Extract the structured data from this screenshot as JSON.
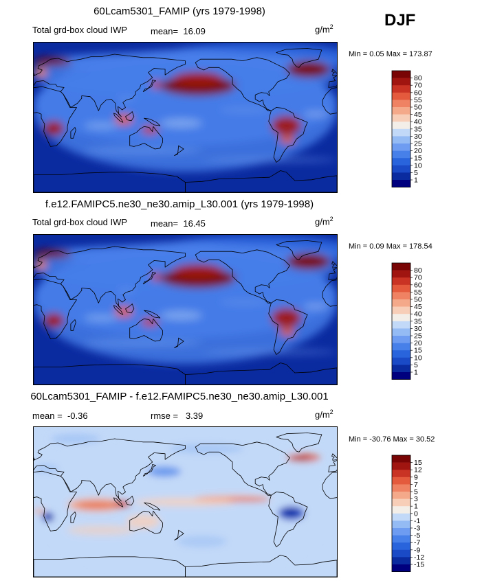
{
  "season": "DJF",
  "panels": [
    {
      "title": "60Lcam5301_FAMIP (yrs 1979-1998)",
      "variable": "Total grd-box cloud IWP",
      "mean_label": "mean=",
      "mean_value": "16.09",
      "units_base": "g/m",
      "units_exp": "2",
      "minmax": "Min =    0.05 Max = 173.87",
      "palette": "abs"
    },
    {
      "title": "f.e12.FAMIPC5.ne30_ne30.amip_L30.001 (yrs 1979-1998)",
      "variable": "Total grd-box cloud IWP",
      "mean_label": "mean=",
      "mean_value": "16.45",
      "units_base": "g/m",
      "units_exp": "2",
      "minmax": "Min =    0.09 Max = 178.54",
      "palette": "abs"
    },
    {
      "title": "60Lcam5301_FAMIP - f.e12.FAMIPC5.ne30_ne30.amip_L30.001",
      "mean_label": "mean =",
      "mean_value": "-0.36",
      "rmse_label": "rmse =",
      "rmse_value": "3.39",
      "units_base": "g/m",
      "units_exp": "2",
      "minmax": "Min = -30.76 Max =  30.52",
      "palette": "diff"
    }
  ],
  "chart_data": [
    {
      "type": "heatmap",
      "title": "60Lcam5301_FAMIP (yrs 1979-1998)",
      "variable": "Total grd-box cloud IWP",
      "units": "g/m2",
      "mean": 16.09,
      "min": 0.05,
      "max": 173.87,
      "colorbar_levels": [
        "1",
        "5",
        "10",
        "15",
        "20",
        "25",
        "30",
        "35",
        "40",
        "45",
        "50",
        "55",
        "60",
        "70",
        "80"
      ],
      "colorbar_colors": [
        "#00007f",
        "#0a2aa0",
        "#1a4ac6",
        "#2a64dc",
        "#4880ea",
        "#6d9cf0",
        "#95bbf4",
        "#c3d9f8",
        "#f4eee8",
        "#f7cfb9",
        "#f4a98a",
        "#ee8262",
        "#e35a3c",
        "#c93323",
        "#a01510",
        "#7a0505"
      ]
    },
    {
      "type": "heatmap",
      "title": "f.e12.FAMIPC5.ne30_ne30.amip_L30.001 (yrs 1979-1998)",
      "variable": "Total grd-box cloud IWP",
      "units": "g/m2",
      "mean": 16.45,
      "min": 0.09,
      "max": 178.54,
      "colorbar_levels": [
        "1",
        "5",
        "10",
        "15",
        "20",
        "25",
        "30",
        "35",
        "40",
        "45",
        "50",
        "55",
        "60",
        "70",
        "80"
      ],
      "colorbar_colors": [
        "#00007f",
        "#0a2aa0",
        "#1a4ac6",
        "#2a64dc",
        "#4880ea",
        "#6d9cf0",
        "#95bbf4",
        "#c3d9f8",
        "#f4eee8",
        "#f7cfb9",
        "#f4a98a",
        "#ee8262",
        "#e35a3c",
        "#c93323",
        "#a01510",
        "#7a0505"
      ]
    },
    {
      "type": "heatmap",
      "title": "60Lcam5301_FAMIP - f.e12.FAMIPC5.ne30_ne30.amip_L30.001",
      "units": "g/m2",
      "mean": -0.36,
      "rmse": 3.39,
      "min": -30.76,
      "max": 30.52,
      "colorbar_levels": [
        "-15",
        "-12",
        "-9",
        "-7",
        "-5",
        "-3",
        "-1",
        "0",
        "1",
        "3",
        "5",
        "7",
        "9",
        "12",
        "15"
      ],
      "colorbar_colors": [
        "#00007f",
        "#0a2aa0",
        "#1a4ac6",
        "#2a64dc",
        "#4880ea",
        "#6d9cf0",
        "#95bbf4",
        "#c3d9f8",
        "#f4eee8",
        "#f7cfb9",
        "#f4a98a",
        "#ee8262",
        "#e35a3c",
        "#c93323",
        "#a01510",
        "#7a0505"
      ]
    }
  ]
}
